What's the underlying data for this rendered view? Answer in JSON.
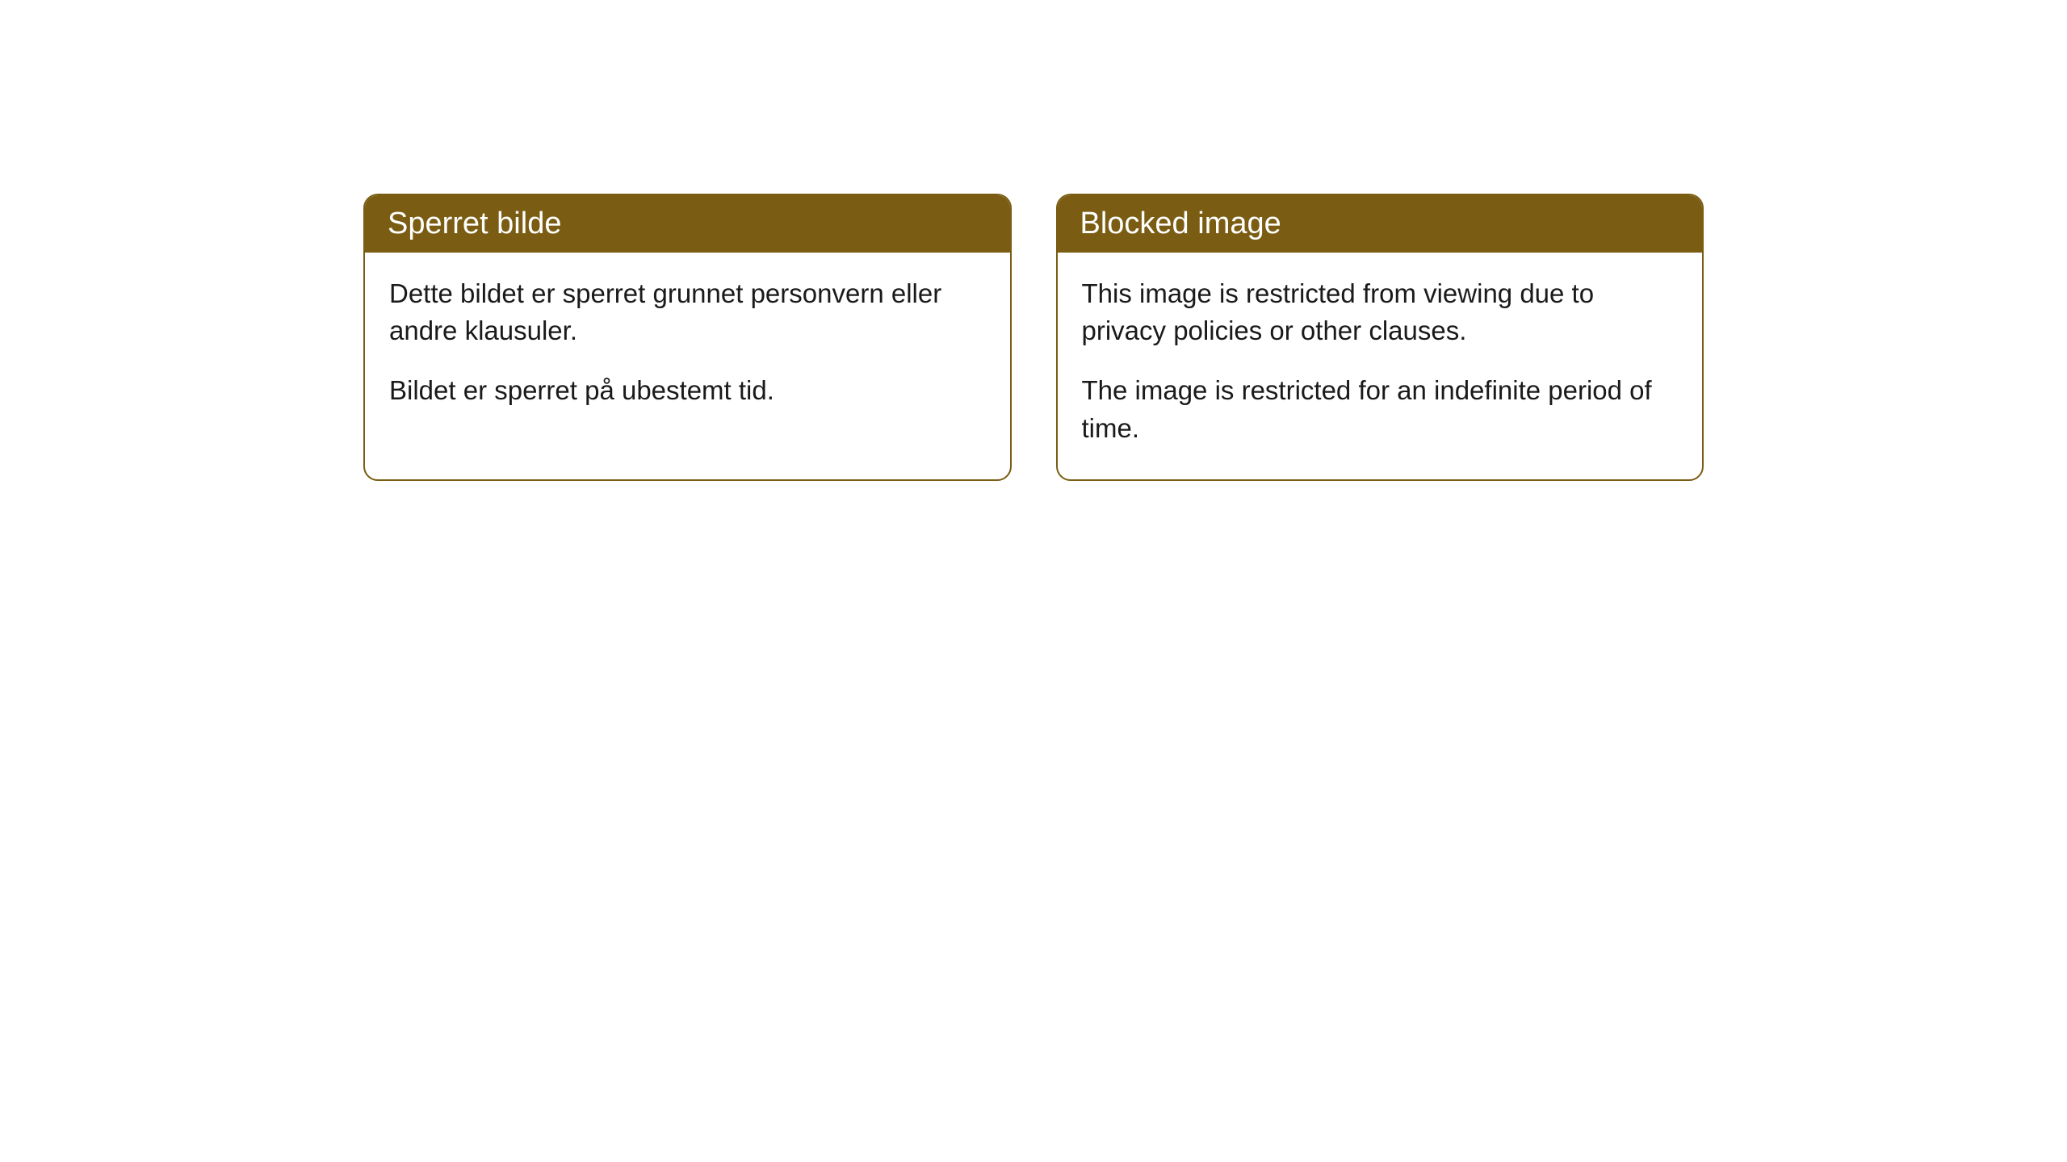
{
  "cards": [
    {
      "title": "Sperret bilde",
      "paragraph1": "Dette bildet er sperret grunnet personvern eller andre klausuler.",
      "paragraph2": "Bildet er sperret på ubestemt tid."
    },
    {
      "title": "Blocked image",
      "paragraph1": "This image is restricted from viewing due to privacy policies or other clauses.",
      "paragraph2": "The image is restricted for an indefinite period of time."
    }
  ],
  "styling": {
    "header_bg_color": "#7a5c12",
    "header_text_color": "#ffffff",
    "border_color": "#7a5c12",
    "body_text_color": "#1a1a1a",
    "background_color": "#ffffff",
    "border_radius": 18,
    "header_fontsize": 38,
    "body_fontsize": 33
  }
}
